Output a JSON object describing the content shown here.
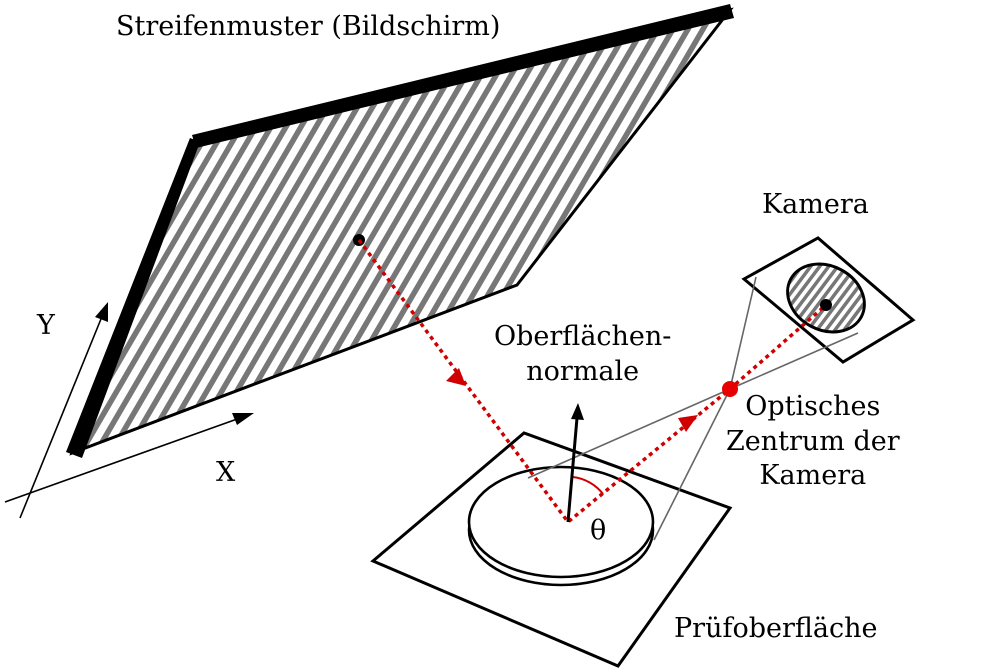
{
  "labels": {
    "screen": "Streifenmuster (Bildschirm)",
    "camera": "Kamera",
    "normal_line1": "Oberflächen-",
    "normal_line2": "normale",
    "optical_line1": "Optisches",
    "optical_line2": "Zentrum der",
    "optical_line3": "Kamera",
    "surface": "Prüfoberfläche",
    "theta": "θ",
    "axis_y": "Y",
    "axis_x": "X"
  },
  "colors": {
    "ray": "#d00000",
    "optical_center": "#e60000",
    "stripes": "#777777",
    "frame": "#000000",
    "angle_arc": "#d00000"
  }
}
